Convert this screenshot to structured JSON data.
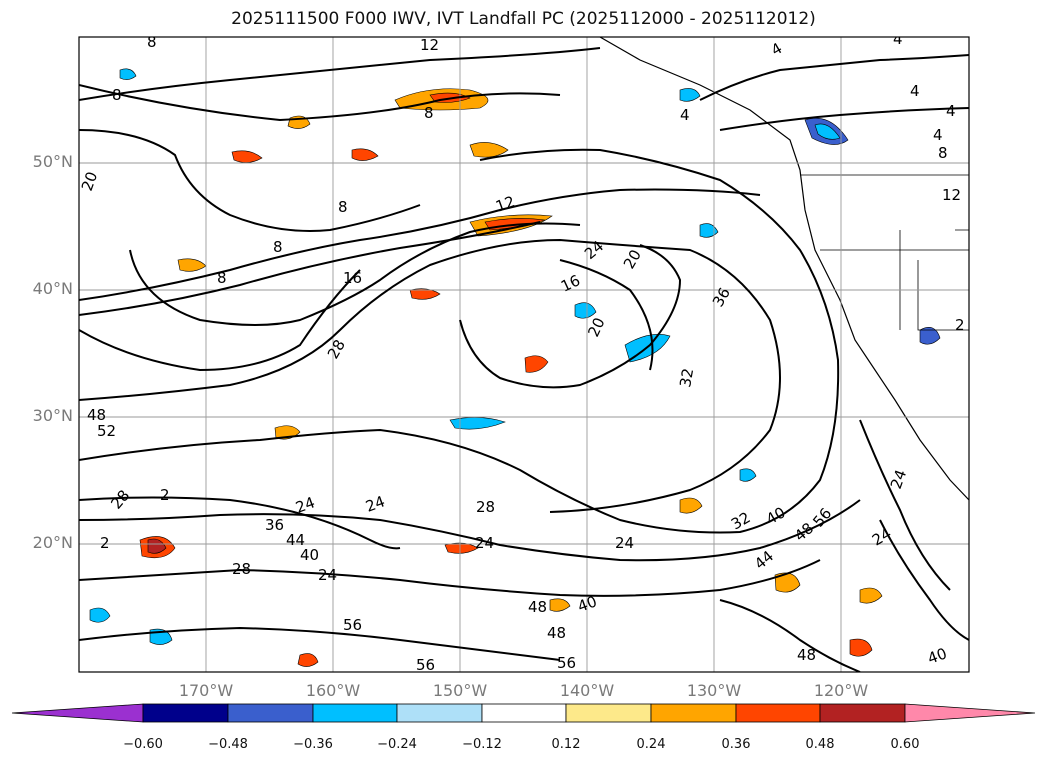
{
  "title": "2025111500 F000 IWV, IVT Landfall PC (2025112000 - 2025112012)",
  "map": {
    "lat_labels": [
      "50°N",
      "40°N",
      "30°N",
      "20°N"
    ],
    "lon_labels": [
      "170°W",
      "160°W",
      "150°W",
      "140°W",
      "130°W",
      "120°W"
    ],
    "contour_labels": [
      "8",
      "12",
      "16",
      "20",
      "24",
      "28",
      "32",
      "36",
      "40",
      "44",
      "48",
      "52",
      "56",
      "4"
    ],
    "contour_color": "#000000",
    "grid_color": "#9a9a9a"
  },
  "colorbar": {
    "ticks": [
      "−0.60",
      "−0.48",
      "−0.36",
      "−0.24",
      "−0.12",
      "0.12",
      "0.24",
      "0.36",
      "0.48",
      "0.60"
    ],
    "colors": [
      "#9b30d0",
      "#00008b",
      "#3a5fcd",
      "#00bfff",
      "#aee0f8",
      "#ffffff",
      "#fde98a",
      "#ffa500",
      "#ff4500",
      "#b22222",
      "#ff88aa"
    ]
  }
}
